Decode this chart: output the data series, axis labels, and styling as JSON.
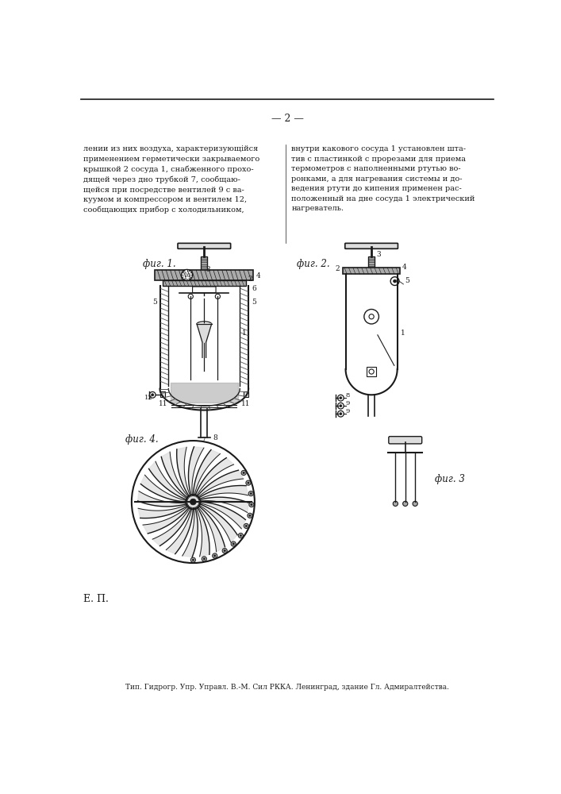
{
  "background_color": "#ffffff",
  "page_color": "#ffffff",
  "text_color": "#111111",
  "page_number": "— 2 —",
  "left_text": "лении из них воздуха, характеризующійся\nприменением герметически закрываемого\nкрышкой 2 сосуда 1, снабженного прохо-\nдящей через дно трубкой 7, сообщаю-\nщейся при посредстве вентилей 9 с ва-\nкуумом и компрессором и вентилем 12,\nсообщающих прибор с холодильником,",
  "right_text": "внутри какового сосуда 1 установлен шта-\nтив с пластинкой с прорезами для приема\nтермометров с наполненными ртутью во-\nронками, а для нагревания системы и до-\nведения ртути до кипения применен рас-\nположенный на дне сосуда 1 электрический\nнагреватель.",
  "fig1_label": "фиг. 1.",
  "fig2_label": "фиг. 2.",
  "fig3_label": "фиг. 3",
  "fig4_label": "фиг. 4.",
  "bottom_left_text": "Е. П.",
  "footer_text": "Тип. Гидрогр. Упр. Управл. В.-М. Сил РККА. Ленинград, здание Гл. Адмиралтейства.",
  "draw_color": "#1a1a1a",
  "hatch_color": "#555555",
  "fill_dark": "#888888",
  "fill_mid": "#aaaaaa",
  "fill_light": "#dddddd"
}
